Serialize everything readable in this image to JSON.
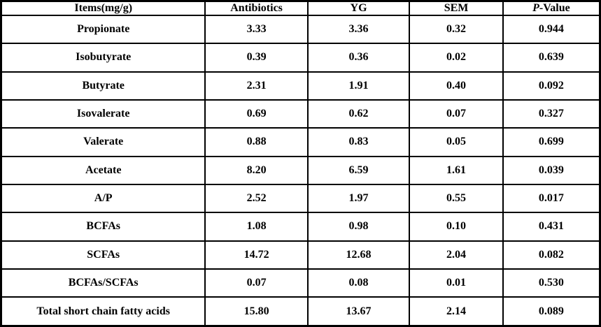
{
  "colors": {
    "border": "#000000",
    "background": "#ffffff",
    "text": "#000000"
  },
  "table": {
    "header": {
      "items_label": "Items(mg/g)",
      "antibiotics_label": "Antibiotics",
      "yg_label": "YG",
      "sem_label": "SEM",
      "pvalue_italic": "P",
      "pvalue_rest": "-Value"
    },
    "rows": [
      {
        "item": "Propionate",
        "antibiotics": "3.33",
        "yg": "3.36",
        "sem": "0.32",
        "p_value": "0.944"
      },
      {
        "item": "Isobutyrate",
        "antibiotics": "0.39",
        "yg": "0.36",
        "sem": "0.02",
        "p_value": "0.639"
      },
      {
        "item": "Butyrate",
        "antibiotics": "2.31",
        "yg": "1.91",
        "sem": "0.40",
        "p_value": "0.092"
      },
      {
        "item": "Isovalerate",
        "antibiotics": "0.69",
        "yg": "0.62",
        "sem": "0.07",
        "p_value": "0.327"
      },
      {
        "item": "Valerate",
        "antibiotics": "0.88",
        "yg": "0.83",
        "sem": "0.05",
        "p_value": "0.699"
      },
      {
        "item": "Acetate",
        "antibiotics": "8.20",
        "yg": "6.59",
        "sem": "1.61",
        "p_value": "0.039"
      },
      {
        "item": "A/P",
        "antibiotics": "2.52",
        "yg": "1.97",
        "sem": "0.55",
        "p_value": "0.017"
      },
      {
        "item": "BCFAs",
        "antibiotics": "1.08",
        "yg": "0.98",
        "sem": "0.10",
        "p_value": "0.431"
      },
      {
        "item": "SCFAs",
        "antibiotics": "14.72",
        "yg": "12.68",
        "sem": "2.04",
        "p_value": "0.082"
      },
      {
        "item": "BCFAs/SCFAs",
        "antibiotics": "0.07",
        "yg": "0.08",
        "sem": "0.01",
        "p_value": "0.530"
      },
      {
        "item": "Total short chain fatty acids",
        "antibiotics": "15.80",
        "yg": "13.67",
        "sem": "2.14",
        "p_value": "0.089"
      }
    ]
  }
}
